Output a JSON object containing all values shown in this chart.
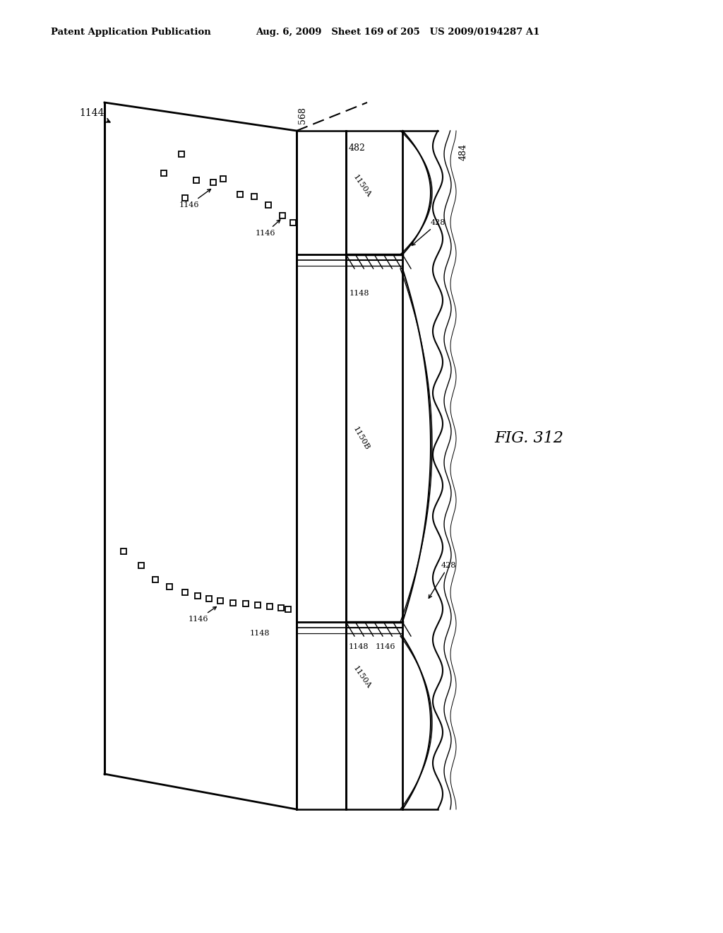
{
  "title_left": "Patent Application Publication",
  "title_right": "Aug. 6, 2009   Sheet 169 of 205   US 2009/0194287 A1",
  "fig_label": "FIG. 312",
  "bg_color": "#ffffff",
  "line_color": "#000000"
}
